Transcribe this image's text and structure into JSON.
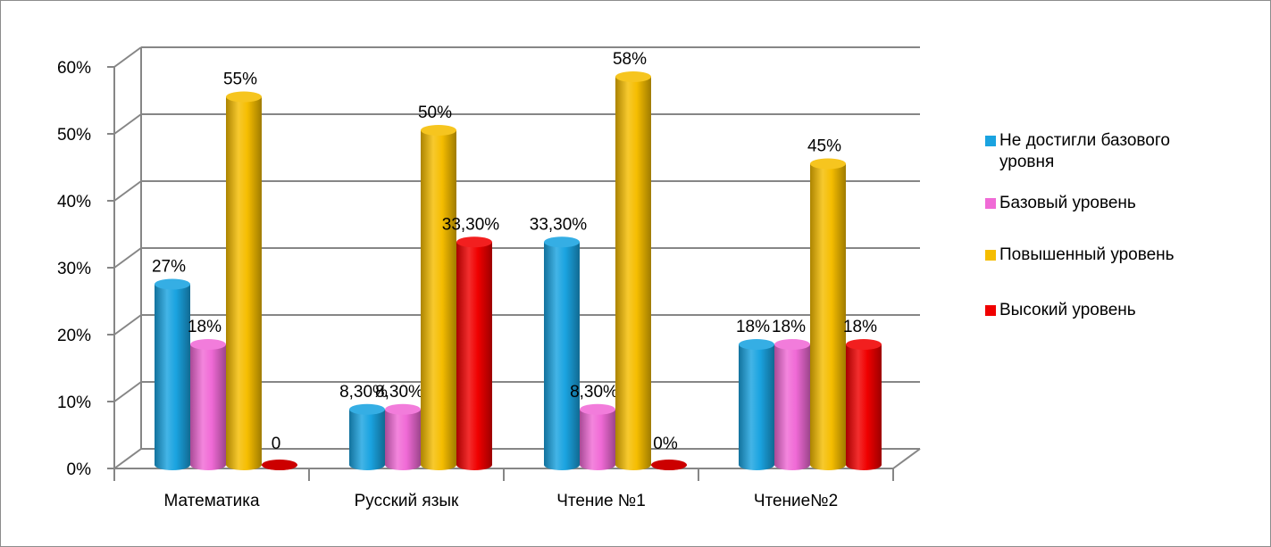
{
  "chart_data": {
    "type": "bar",
    "categories": [
      "Математика",
      "Русский язык",
      "Чтение №1",
      "Чтение№2"
    ],
    "series": [
      {
        "name": "Не достигли базового уровня",
        "values": [
          27,
          8.3,
          33.3,
          18
        ],
        "labels": [
          "27%",
          "8,30%",
          "33,30%",
          "18%"
        ],
        "color": "#1aa3e0"
      },
      {
        "name": "Базовый уровень",
        "values": [
          18,
          8.3,
          8.3,
          18
        ],
        "labels": [
          "18%",
          "8,30%",
          "8,30%",
          "18%"
        ],
        "color": "#f06ad6"
      },
      {
        "name": "Повышенный уровень",
        "values": [
          55,
          50,
          58,
          45
        ],
        "labels": [
          "55%",
          "50%",
          "58%",
          "45%"
        ],
        "color": "#f5bd00"
      },
      {
        "name": "Высокий уровень",
        "values": [
          0,
          33.3,
          0,
          18
        ],
        "labels": [
          "0",
          "33,30%",
          "0%",
          "18%"
        ],
        "color": "#f00000"
      }
    ],
    "y_ticks": [
      "0%",
      "10%",
      "20%",
      "30%",
      "40%",
      "50%",
      "60%"
    ],
    "ylim": [
      0,
      60
    ],
    "grid": true,
    "legend_position": "right",
    "title": "",
    "xlabel": "",
    "ylabel": ""
  }
}
